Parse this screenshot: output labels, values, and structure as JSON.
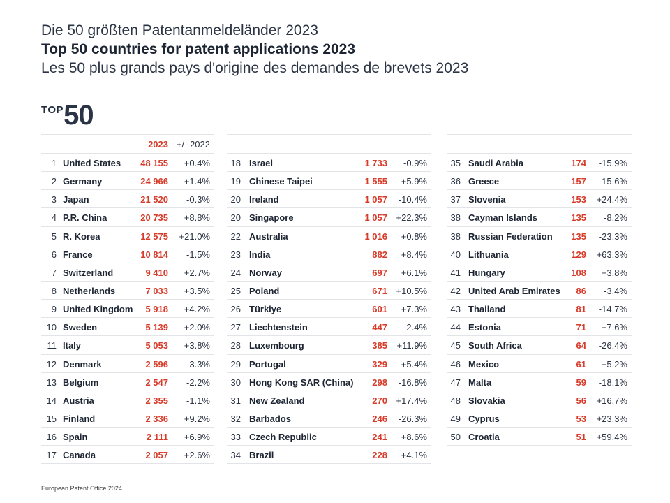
{
  "header": {
    "title_de": "Die 50 größten Patentanmeldeländer 2023",
    "title_en": "Top 50 countries for patent applications 2023",
    "title_fr": "Les 50 plus grands pays d'origine des demandes de brevets 2023",
    "badge_top": "TOP",
    "badge_num": "50"
  },
  "table": {
    "col_year": "2023",
    "col_change": "+/- 2022",
    "columns": [
      [
        {
          "rank": "1",
          "country": "United States",
          "value": "48 155",
          "change": "+0.4%"
        },
        {
          "rank": "2",
          "country": "Germany",
          "value": "24 966",
          "change": "+1.4%"
        },
        {
          "rank": "3",
          "country": "Japan",
          "value": "21 520",
          "change": "-0.3%"
        },
        {
          "rank": "4",
          "country": "P.R. China",
          "value": "20 735",
          "change": "+8.8%"
        },
        {
          "rank": "5",
          "country": "R. Korea",
          "value": "12 575",
          "change": "+21.0%"
        },
        {
          "rank": "6",
          "country": "France",
          "value": "10 814",
          "change": "-1.5%"
        },
        {
          "rank": "7",
          "country": "Switzerland",
          "value": "9 410",
          "change": "+2.7%"
        },
        {
          "rank": "8",
          "country": "Netherlands",
          "value": "7 033",
          "change": "+3.5%"
        },
        {
          "rank": "9",
          "country": "United Kingdom",
          "value": "5 918",
          "change": "+4.2%"
        },
        {
          "rank": "10",
          "country": "Sweden",
          "value": "5 139",
          "change": "+2.0%"
        },
        {
          "rank": "11",
          "country": "Italy",
          "value": "5 053",
          "change": "+3.8%"
        },
        {
          "rank": "12",
          "country": "Denmark",
          "value": "2 596",
          "change": "-3.3%"
        },
        {
          "rank": "13",
          "country": "Belgium",
          "value": "2 547",
          "change": "-2.2%"
        },
        {
          "rank": "14",
          "country": "Austria",
          "value": "2 355",
          "change": "-1.1%"
        },
        {
          "rank": "15",
          "country": "Finland",
          "value": "2 336",
          "change": "+9.2%"
        },
        {
          "rank": "16",
          "country": "Spain",
          "value": "2 111",
          "change": "+6.9%"
        },
        {
          "rank": "17",
          "country": "Canada",
          "value": "2 057",
          "change": "+2.6%"
        }
      ],
      [
        {
          "rank": "18",
          "country": "Israel",
          "value": "1 733",
          "change": "-0.9%"
        },
        {
          "rank": "19",
          "country": "Chinese Taipei",
          "value": "1 555",
          "change": "+5.9%"
        },
        {
          "rank": "20",
          "country": "Ireland",
          "value": "1 057",
          "change": "-10.4%"
        },
        {
          "rank": "20",
          "country": "Singapore",
          "value": "1 057",
          "change": "+22.3%"
        },
        {
          "rank": "22",
          "country": "Australia",
          "value": "1 016",
          "change": "+0.8%"
        },
        {
          "rank": "23",
          "country": "India",
          "value": "882",
          "change": "+8.4%"
        },
        {
          "rank": "24",
          "country": "Norway",
          "value": "697",
          "change": "+6.1%"
        },
        {
          "rank": "25",
          "country": "Poland",
          "value": "671",
          "change": "+10.5%"
        },
        {
          "rank": "26",
          "country": "Türkiye",
          "value": "601",
          "change": "+7.3%"
        },
        {
          "rank": "27",
          "country": "Liechtenstein",
          "value": "447",
          "change": "-2.4%"
        },
        {
          "rank": "28",
          "country": "Luxembourg",
          "value": "385",
          "change": "+11.9%"
        },
        {
          "rank": "29",
          "country": "Portugal",
          "value": "329",
          "change": "+5.4%"
        },
        {
          "rank": "30",
          "country": "Hong Kong SAR (China)",
          "value": "298",
          "change": "-16.8%"
        },
        {
          "rank": "31",
          "country": "New Zealand",
          "value": "270",
          "change": "+17.4%"
        },
        {
          "rank": "32",
          "country": "Barbados",
          "value": "246",
          "change": "-26.3%"
        },
        {
          "rank": "33",
          "country": "Czech Republic",
          "value": "241",
          "change": "+8.6%"
        },
        {
          "rank": "34",
          "country": "Brazil",
          "value": "228",
          "change": "+4.1%"
        }
      ],
      [
        {
          "rank": "35",
          "country": "Saudi Arabia",
          "value": "174",
          "change": "-15.9%"
        },
        {
          "rank": "36",
          "country": "Greece",
          "value": "157",
          "change": "-15.6%"
        },
        {
          "rank": "37",
          "country": "Slovenia",
          "value": "153",
          "change": "+24.4%"
        },
        {
          "rank": "38",
          "country": "Cayman Islands",
          "value": "135",
          "change": "-8.2%"
        },
        {
          "rank": "38",
          "country": "Russian Federation",
          "value": "135",
          "change": "-23.3%"
        },
        {
          "rank": "40",
          "country": "Lithuania",
          "value": "129",
          "change": "+63.3%"
        },
        {
          "rank": "41",
          "country": "Hungary",
          "value": "108",
          "change": "+3.8%"
        },
        {
          "rank": "42",
          "country": "United Arab Emirates",
          "value": "86",
          "change": "-3.4%"
        },
        {
          "rank": "43",
          "country": "Thailand",
          "value": "81",
          "change": "-14.7%"
        },
        {
          "rank": "44",
          "country": "Estonia",
          "value": "71",
          "change": "+7.6%"
        },
        {
          "rank": "45",
          "country": "South Africa",
          "value": "64",
          "change": "-26.4%"
        },
        {
          "rank": "46",
          "country": "Mexico",
          "value": "61",
          "change": "+5.2%"
        },
        {
          "rank": "47",
          "country": "Malta",
          "value": "59",
          "change": "-18.1%"
        },
        {
          "rank": "48",
          "country": "Slovakia",
          "value": "56",
          "change": "+16.7%"
        },
        {
          "rank": "49",
          "country": "Cyprus",
          "value": "53",
          "change": "+23.3%"
        },
        {
          "rank": "50",
          "country": "Croatia",
          "value": "51",
          "change": "+59.4%"
        }
      ]
    ]
  },
  "footer": {
    "source": "European Patent Office 2024"
  },
  "colors": {
    "accent_red": "#d73b2a",
    "text_dark": "#1d2533",
    "rule": "#e2e4e8"
  }
}
